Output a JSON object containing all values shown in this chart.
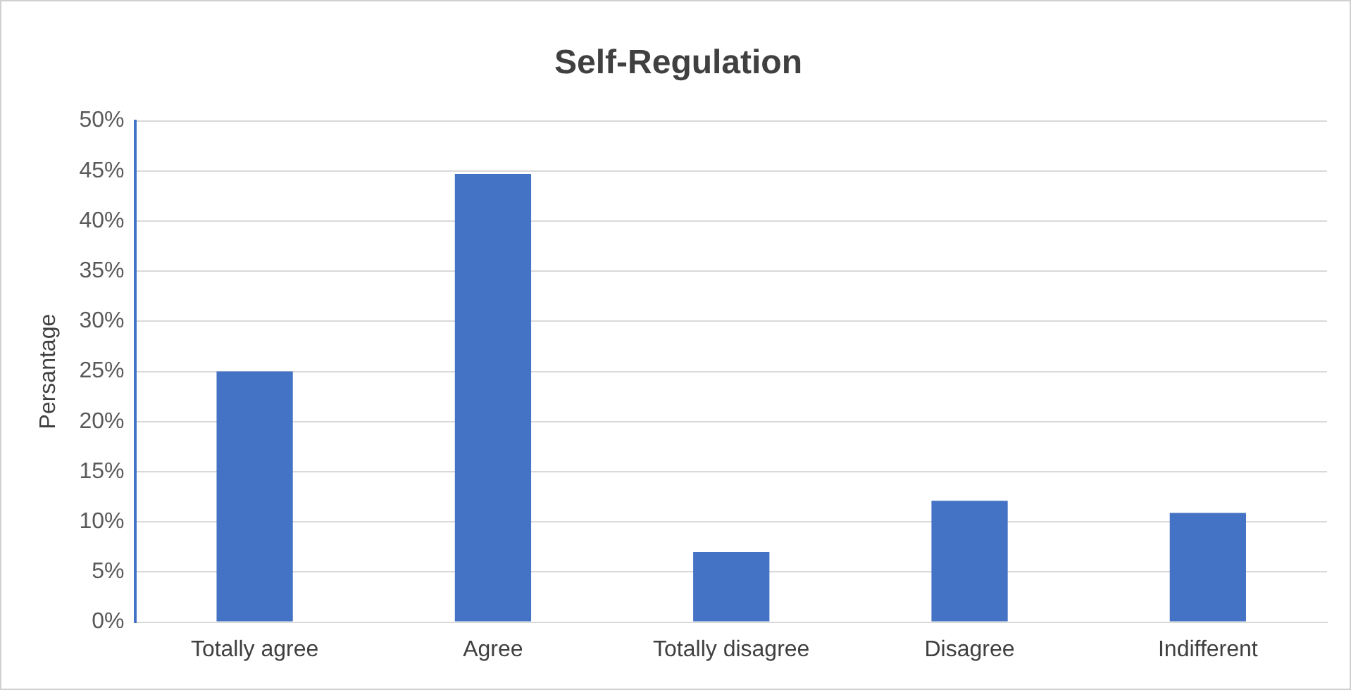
{
  "chart_data": {
    "type": "bar",
    "title": "Self-Regulation",
    "ylabel": "Persantage",
    "categories": [
      "Totally agree",
      "Agree",
      "Totally disagree",
      "Disagree",
      "Indifferent"
    ],
    "values": [
      25,
      44.7,
      7,
      12.1,
      10.9
    ],
    "color": "#4472c4",
    "ylim": [
      0,
      50
    ],
    "yticks": [
      {
        "value": 0,
        "label": "0%"
      },
      {
        "value": 5,
        "label": "5%"
      },
      {
        "value": 10,
        "label": "10%"
      },
      {
        "value": 15,
        "label": "15%"
      },
      {
        "value": 20,
        "label": "20%"
      },
      {
        "value": 25,
        "label": "25%"
      },
      {
        "value": 30,
        "label": "30%"
      },
      {
        "value": 35,
        "label": "35%"
      },
      {
        "value": 40,
        "label": "40%"
      },
      {
        "value": 45,
        "label": "45%"
      },
      {
        "value": 50,
        "label": "50%"
      }
    ],
    "grid": "y",
    "legend": false
  }
}
